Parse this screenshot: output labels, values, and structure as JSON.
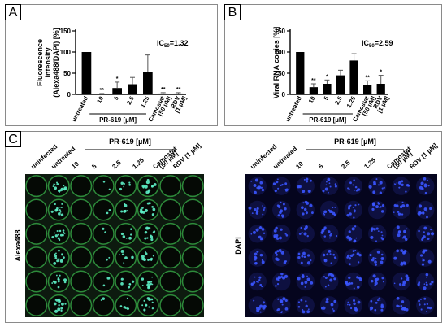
{
  "panels": {
    "A": {
      "letter": "A"
    },
    "B": {
      "letter": "B"
    },
    "C": {
      "letter": "C"
    }
  },
  "chart_data": [
    {
      "type": "bar",
      "panel": "A",
      "ylabel_lines": [
        "Fluorescence",
        "intensity",
        "(Alexa488/DAPI) [%]"
      ],
      "ylim": [
        0,
        150
      ],
      "yticks": [
        0,
        50,
        100,
        150
      ],
      "ic50": {
        "prefix": "IC",
        "sub": "50",
        "value": "=1.32"
      },
      "group_label": "PR-619 [µM]",
      "categories": [
        "untreated",
        "10",
        "5",
        "2.5",
        "1.25",
        "Camostat\n[50 µM]",
        "RDV\n[1 µM]"
      ],
      "values": [
        100,
        1,
        15,
        24,
        53,
        2,
        2
      ],
      "errors": [
        0,
        1,
        14,
        16,
        40,
        2,
        2
      ],
      "significance": [
        "",
        "**",
        "*",
        "",
        "",
        "**",
        "**"
      ]
    },
    {
      "type": "bar",
      "panel": "B",
      "ylabel_lines": [
        "Viral RNA copies [%]"
      ],
      "ylim": [
        0,
        150
      ],
      "yticks": [
        0,
        50,
        100,
        150
      ],
      "ic50": {
        "prefix": "IC",
        "sub": "50",
        "value": "=2.59"
      },
      "group_label": "PR-619 [µM]",
      "categories": [
        "untreated",
        "10",
        "5",
        "2.5",
        "1.25",
        "Camostat\n[50 µM]",
        "RDV\n[1 µM]"
      ],
      "values": [
        100,
        17,
        25,
        45,
        80,
        22,
        25
      ],
      "errors": [
        0,
        8,
        9,
        12,
        16,
        10,
        20
      ],
      "significance": [
        "",
        "**",
        "*",
        "",
        "",
        "**",
        "*"
      ]
    }
  ],
  "plate": {
    "group_label": "PR-619 [µM]",
    "column_labels": [
      "uninfected",
      "untreated",
      "10",
      "5",
      "2.5",
      "1.25",
      "Camostat\n[50 µM]",
      "RDV [1 µM]"
    ],
    "stains": [
      "Alexa488",
      "DAPI"
    ],
    "colors": {
      "alexa_bg": "#0d1a0f",
      "alexa_ring": "#2d8a3a",
      "alexa_signal": "#5ef2c8",
      "dapi_bg": "#05051e",
      "dapi_well": "#0e1040",
      "dapi_signal": "#3a55ff"
    },
    "alexa_intensity": [
      0.02,
      0.95,
      0.0,
      0.15,
      0.4,
      0.75,
      0.02,
      0.03
    ],
    "dapi_intensity": [
      0.7,
      0.75,
      0.65,
      0.7,
      0.75,
      0.75,
      0.7,
      0.7
    ]
  }
}
